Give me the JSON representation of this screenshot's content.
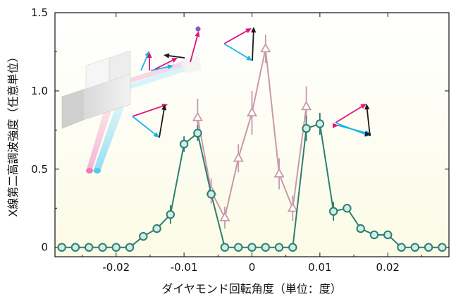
{
  "chart_data": {
    "type": "line",
    "title": "",
    "xlabel": "ダイヤモンド回転角度（単位：度）",
    "ylabel": "X線第二高調波強度（任意単位）",
    "xlim": [
      -0.029,
      0.029
    ],
    "ylim": [
      -0.06,
      1.5
    ],
    "x_ticks": [
      {
        "value": -0.02,
        "label": "-0.02"
      },
      {
        "value": -0.01,
        "label": "-0.01"
      },
      {
        "value": 0,
        "label": "0"
      },
      {
        "value": 0.01,
        "label": "0.01"
      },
      {
        "value": 0.02,
        "label": "0.02"
      }
    ],
    "y_ticks": [
      {
        "value": 0,
        "label": "0"
      },
      {
        "value": 0.5,
        "label": "0.5"
      },
      {
        "value": 1.0,
        "label": "1.0"
      },
      {
        "value": 1.5,
        "label": "1.5"
      }
    ],
    "background": {
      "top": "#ffffff",
      "bottom": "#fbfbe6"
    },
    "series": [
      {
        "marker": "circle",
        "color": "#2e7e72",
        "fill": "#cfeee6",
        "points": [
          {
            "x": -0.028,
            "y": 0
          },
          {
            "x": -0.026,
            "y": 0
          },
          {
            "x": -0.024,
            "y": 0
          },
          {
            "x": -0.022,
            "y": 0
          },
          {
            "x": -0.02,
            "y": 0
          },
          {
            "x": -0.018,
            "y": 0
          },
          {
            "x": -0.016,
            "y": 0.07
          },
          {
            "x": -0.014,
            "y": 0.12
          },
          {
            "x": -0.012,
            "y": 0.21,
            "err": 0.06
          },
          {
            "x": -0.01,
            "y": 0.66,
            "err": 0.05
          },
          {
            "x": -0.008,
            "y": 0.73,
            "err": 0.05
          },
          {
            "x": -0.006,
            "y": 0.34
          },
          {
            "x": -0.004,
            "y": 0
          },
          {
            "x": -0.002,
            "y": 0
          },
          {
            "x": 0,
            "y": 0
          },
          {
            "x": 0.002,
            "y": 0
          },
          {
            "x": 0.004,
            "y": 0
          },
          {
            "x": 0.006,
            "y": 0
          },
          {
            "x": 0.008,
            "y": 0.76,
            "err": 0.08
          },
          {
            "x": 0.01,
            "y": 0.79,
            "err": 0.07
          },
          {
            "x": 0.012,
            "y": 0.23,
            "err": 0.06
          },
          {
            "x": 0.014,
            "y": 0.25
          },
          {
            "x": 0.016,
            "y": 0.12
          },
          {
            "x": 0.018,
            "y": 0.08
          },
          {
            "x": 0.02,
            "y": 0.08
          },
          {
            "x": 0.022,
            "y": 0
          },
          {
            "x": 0.024,
            "y": 0
          },
          {
            "x": 0.026,
            "y": 0
          },
          {
            "x": 0.028,
            "y": 0
          }
        ]
      },
      {
        "marker": "triangle",
        "color": "#c999ab",
        "fill": "#ffffff",
        "points": [
          {
            "x": -0.008,
            "y": 0.83,
            "err": 0.12
          },
          {
            "x": -0.006,
            "y": 0.36,
            "err": 0.08
          },
          {
            "x": -0.004,
            "y": 0.19,
            "err": 0.07
          },
          {
            "x": -0.002,
            "y": 0.57,
            "err": 0.09
          },
          {
            "x": 0,
            "y": 0.86,
            "err": 0.14
          },
          {
            "x": 0.002,
            "y": 1.27,
            "err": 0.09
          },
          {
            "x": 0.004,
            "y": 0.47,
            "err": 0.1
          },
          {
            "x": 0.006,
            "y": 0.25,
            "err": 0.08
          },
          {
            "x": 0.008,
            "y": 0.9,
            "err": 0.13
          }
        ]
      }
    ]
  },
  "illustration": {
    "beam_colors": {
      "pink": "#f39bc8",
      "cyan": "#7fd6f4"
    },
    "vector_colors": {
      "magenta": "#e0137a",
      "cyan": "#19b4ea",
      "black": "#1a1a1a",
      "violet": "#8c5cc4"
    }
  }
}
